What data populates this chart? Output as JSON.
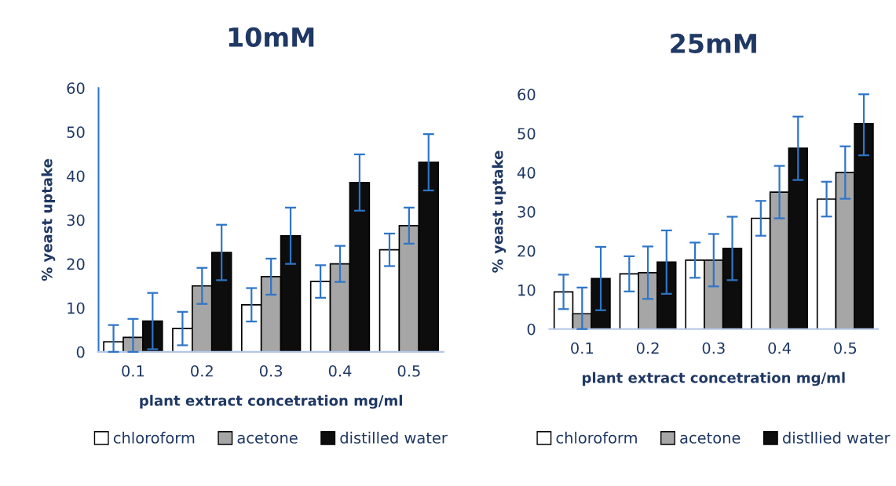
{
  "chart_data": [
    {
      "type": "bar",
      "title": "10mM",
      "xlabel": "plant extract concetration mg/ml",
      "ylabel": "% yeast uptake",
      "categories": [
        "0.1",
        "0.2",
        "0.3",
        "0.4",
        "0.5"
      ],
      "ylim": [
        0,
        60
      ],
      "yticks": [
        0,
        10,
        20,
        30,
        40,
        50,
        60
      ],
      "grid": false,
      "legend": "bottom",
      "series": [
        {
          "name": "chloroform",
          "color": "#ffffff",
          "values": [
            2.3,
            5.3,
            10.7,
            16.0,
            23.2
          ],
          "errors": [
            [
              0,
              6.1
            ],
            3.8,
            3.8,
            3.7,
            3.7
          ]
        },
        {
          "name": "acetone",
          "color": "#a6a6a6",
          "values": [
            3.3,
            15.0,
            17.1,
            20.0,
            28.7
          ],
          "errors": [
            [
              0,
              7.5
            ],
            4.1,
            4.1,
            4.1,
            4.1
          ]
        },
        {
          "name": "distilled water",
          "color": "#0d0d0d",
          "values": [
            7.0,
            22.6,
            26.4,
            38.5,
            43.1
          ],
          "errors": [
            6.4,
            6.3,
            6.4,
            6.4,
            6.4
          ]
        }
      ]
    },
    {
      "type": "bar",
      "title": "25mM",
      "xlabel": "plant extract concetration mg/ml",
      "ylabel": "% yeast uptake",
      "categories": [
        "0.1",
        "0.2",
        "0.3",
        "0.4",
        "0.5"
      ],
      "ylim": [
        0,
        60
      ],
      "yticks": [
        0,
        10,
        20,
        30,
        40,
        50,
        60
      ],
      "grid": false,
      "legend": "bottom",
      "series": [
        {
          "name": "chloroform",
          "color": "#ffffff",
          "values": [
            9.5,
            14.1,
            17.6,
            28.3,
            33.2
          ],
          "errors": [
            4.4,
            4.5,
            4.5,
            4.45,
            4.45
          ]
        },
        {
          "name": "acetone",
          "color": "#a6a6a6",
          "values": [
            3.9,
            14.4,
            17.6,
            35.0,
            40.0
          ],
          "errors": [
            [
              0,
              10.6
            ],
            6.7,
            6.7,
            6.7,
            6.7
          ]
        },
        {
          "name": "distllied water",
          "color": "#0d0d0d",
          "values": [
            12.9,
            17.1,
            20.6,
            46.2,
            52.5
          ],
          "errors": [
            8.1,
            8.1,
            8.1,
            8.1,
            [
              44.4,
              60
            ]
          ]
        }
      ]
    }
  ]
}
